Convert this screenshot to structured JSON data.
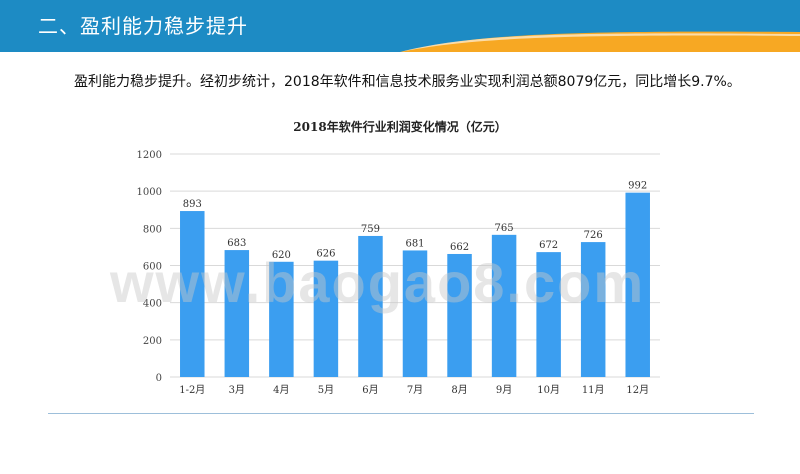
{
  "header": {
    "title": "二、盈利能力稳步提升"
  },
  "paragraph": "盈利能力稳步提升。经初步统计，2018年软件和信息技术服务业实现利润总额8079亿元，同比增长9.7%。",
  "watermark": "www.baogao8.com",
  "colors": {
    "header_blue": "#1d8bc4",
    "header_orange": "#f7a823",
    "bar": "#3b9ef0"
  },
  "chart_data": {
    "type": "bar",
    "title": "2018年软件行业利润变化情况（亿元）",
    "categories": [
      "1-2月",
      "3月",
      "4月",
      "5月",
      "6月",
      "7月",
      "8月",
      "9月",
      "10月",
      "11月",
      "12月"
    ],
    "values": [
      893,
      683,
      620,
      626,
      759,
      681,
      662,
      765,
      672,
      726,
      992
    ],
    "yticks": [
      "0",
      "200",
      "400",
      "600",
      "800",
      "1000",
      "1200"
    ],
    "ylim": [
      0,
      1200
    ],
    "grid": true
  }
}
